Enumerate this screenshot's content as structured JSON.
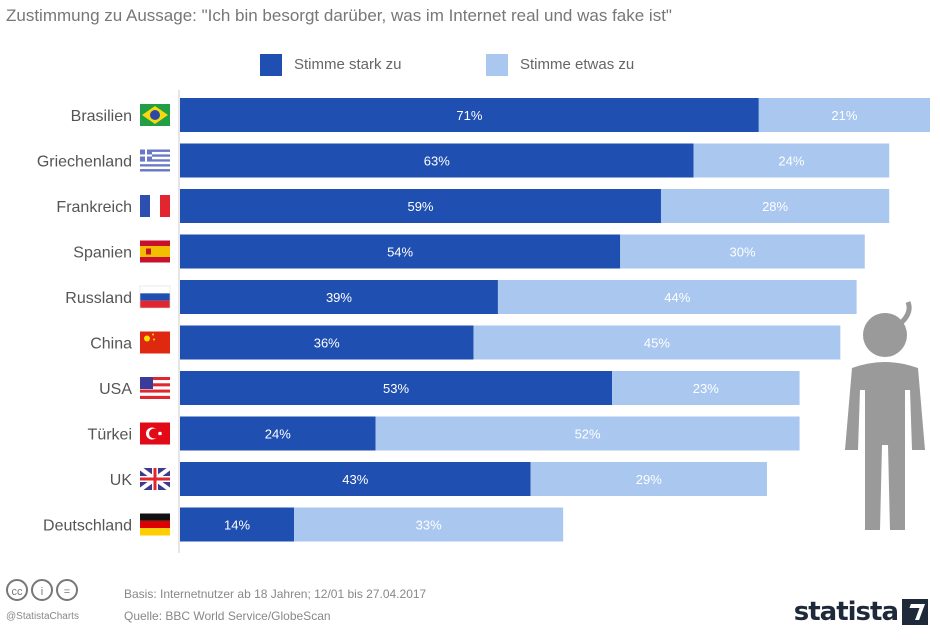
{
  "subtitle": "Zustimmung zu Aussage: \"Ich bin besorgt darüber, was im Internet real und was fake ist\"",
  "legend": [
    {
      "label": "Stimme stark zu",
      "color": "#1f4fb0"
    },
    {
      "label": "Stimme etwas zu",
      "color": "#a9c7ef"
    }
  ],
  "chart_data": {
    "type": "bar",
    "orientation": "horizontal",
    "stacked": true,
    "categories": [
      "Brasilien",
      "Griechenland",
      "Frankreich",
      "Spanien",
      "Russland",
      "China",
      "USA",
      "Türkei",
      "UK",
      "Deutschland"
    ],
    "series": [
      {
        "name": "Stimme stark zu",
        "values": [
          71,
          63,
          59,
          54,
          39,
          36,
          53,
          24,
          43,
          14
        ]
      },
      {
        "name": "Stimme etwas zu",
        "values": [
          21,
          24,
          28,
          30,
          44,
          45,
          23,
          52,
          29,
          33
        ]
      }
    ],
    "value_labels": [
      [
        "71%",
        "21%"
      ],
      [
        "63%",
        "24%"
      ],
      [
        "59%",
        "28%"
      ],
      [
        "54%",
        "30%"
      ],
      [
        "39%",
        "44%"
      ],
      [
        "36%",
        "45%"
      ],
      [
        "53%",
        "23%"
      ],
      [
        "24%",
        "52%"
      ],
      [
        "43%",
        "29%"
      ],
      [
        "14%",
        "33%"
      ]
    ],
    "flags": [
      "brazil-flag-icon",
      "greece-flag-icon",
      "france-flag-icon",
      "spain-flag-icon",
      "russia-flag-icon",
      "china-flag-icon",
      "usa-flag-icon",
      "turkey-flag-icon",
      "uk-flag-icon",
      "germany-flag-icon"
    ],
    "xlim": [
      0,
      92
    ],
    "colors": {
      "strong": "#1f4fb0",
      "some": "#a9c7ef"
    }
  },
  "decoration": {
    "figure": "concerned-person-icon"
  },
  "footer": {
    "license_icons": [
      "cc-icon",
      "by-icon",
      "nd-icon"
    ],
    "infocharts": "@StatistaCharts",
    "basis": "Basis: Internetnutzer ab 18 Jahren; 12/01 bis 27.04.2017",
    "source": "Quelle: BBC World Service/GlobeScan",
    "brand": "statista"
  }
}
